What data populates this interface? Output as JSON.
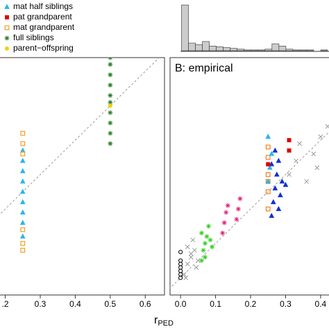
{
  "chart_data": [
    {
      "type": "scatter",
      "xlim": [
        0.185,
        0.655
      ],
      "ylim": [
        -0.05,
        0.64
      ],
      "xticks": [
        {
          "value": 0.2,
          "label": ".2"
        },
        0.3,
        0.4,
        0.5,
        0.6
      ],
      "diagonal": true,
      "series": [
        {
          "name": "mat half siblings",
          "color": "#29b6e8",
          "marker": "triangle",
          "x": [
            0.25,
            0.25,
            0.25,
            0.25,
            0.25,
            0.25,
            0.25,
            0.25,
            0.25
          ],
          "values": [
            0.12,
            0.16,
            0.19,
            0.22,
            0.25,
            0.28,
            0.31,
            0.34,
            0.37
          ]
        },
        {
          "name": "pat grandparent",
          "color": "#e00000",
          "marker": "square",
          "x": [],
          "values": []
        },
        {
          "name": "mat grandparent",
          "color": "#f0a020",
          "marker": "square-open",
          "x": [
            0.25,
            0.25,
            0.25,
            0.25,
            0.25,
            0.25
          ],
          "values": [
            0.08,
            0.1,
            0.14,
            0.36,
            0.39,
            0.42
          ]
        },
        {
          "name": "full siblings",
          "color": "#1e7a1e",
          "marker": "asterisk",
          "x": [
            0.5,
            0.5,
            0.5,
            0.5,
            0.5,
            0.5,
            0.5,
            0.5,
            0.5,
            0.5
          ],
          "values": [
            0.39,
            0.42,
            0.45,
            0.48,
            0.51,
            0.53,
            0.56,
            0.59,
            0.62,
            0.64
          ]
        },
        {
          "name": "parent−offspring",
          "color": "#f5d000",
          "marker": "dot",
          "x": [
            0.5
          ],
          "values": [
            0.5
          ]
        }
      ]
    },
    {
      "type": "scatter",
      "title": "B: empirical",
      "x_label": "r",
      "x_label_sub": "PED",
      "xlim": [
        -0.03,
        0.424
      ],
      "ylim": [
        -0.05,
        0.64
      ],
      "xticks": [
        {
          "value": 0,
          "label": "0.0"
        },
        0.1,
        0.2,
        0.3,
        0.4
      ],
      "diagonal": true,
      "series": [
        {
          "color": "#999999",
          "marker": "x",
          "x": [
            0.01,
            0.02,
            0.03,
            0.04,
            0.05,
            0.02,
            0.035,
            0.045,
            0.015,
            0.03
          ],
          "values": [
            0.01,
            0.04,
            0.06,
            0.08,
            0.05,
            0.09,
            0.11,
            0.03,
            0.0,
            0.07
          ]
        },
        {
          "color": "#000000",
          "marker": "circle",
          "x": [
            0,
            0,
            0,
            0,
            0,
            0,
            0
          ],
          "values": [
            0.0,
            0.01,
            0.02,
            0.03,
            0.04,
            0.05,
            0.075
          ]
        },
        {
          "color": "#33cc22",
          "marker": "asterisk",
          "x": [
            0.06,
            0.065,
            0.07,
            0.075,
            0.08,
            0.085,
            0.06,
            0.07,
            0.09
          ],
          "values": [
            0.05,
            0.08,
            0.1,
            0.12,
            0.15,
            0.11,
            0.13,
            0.06,
            0.09
          ]
        },
        {
          "color": "#e0207a",
          "marker": "asterisk",
          "x": [
            0.12,
            0.125,
            0.13,
            0.135,
            0.16,
            0.165,
            0.17
          ],
          "values": [
            0.13,
            0.16,
            0.19,
            0.21,
            0.17,
            0.2,
            0.23
          ]
        },
        {
          "color": "#f08020",
          "marker": "square-open",
          "x": [
            0.25,
            0.25,
            0.25,
            0.25,
            0.25,
            0.25
          ],
          "values": [
            0.2,
            0.25,
            0.3,
            0.35,
            0.28,
            0.38
          ]
        },
        {
          "color": "#1030d0",
          "marker": "triangle",
          "x": [
            0.26,
            0.265,
            0.27,
            0.275,
            0.28,
            0.285,
            0.29,
            0.27,
            0.28,
            0.26,
            0.3
          ],
          "values": [
            0.18,
            0.22,
            0.26,
            0.3,
            0.34,
            0.24,
            0.28,
            0.37,
            0.2,
            0.33,
            0.27
          ]
        },
        {
          "color": "#29b6e8",
          "marker": "triangle",
          "x": [
            0.25,
            0.255,
            0.25,
            0.26
          ],
          "values": [
            0.28,
            0.32,
            0.41,
            0.36
          ]
        },
        {
          "color": "#e00000",
          "marker": "square",
          "x": [
            0.25,
            0.31,
            0.31
          ],
          "values": [
            0.33,
            0.4,
            0.37
          ]
        },
        {
          "color": "#999999",
          "marker": "x",
          "x": [
            0.31,
            0.33,
            0.36,
            0.38,
            0.4,
            0.42,
            0.34,
            0.39
          ],
          "values": [
            0.3,
            0.34,
            0.28,
            0.36,
            0.41,
            0.44,
            0.39,
            0.32
          ]
        }
      ]
    },
    {
      "type": "histogram",
      "bins": [
        0,
        0.02,
        0.04,
        0.06,
        0.08,
        0.1,
        0.12,
        0.14,
        0.16,
        0.18,
        0.2,
        0.22,
        0.24,
        0.26,
        0.28,
        0.3,
        0.32,
        0.34,
        0.36,
        0.38,
        0.4,
        0.42
      ],
      "values": [
        60,
        10,
        8,
        12,
        6,
        5,
        4,
        3,
        2,
        1,
        1,
        1,
        2,
        9,
        6,
        2,
        1,
        1,
        1,
        0,
        1
      ],
      "xlim": [
        -0.003,
        0.424
      ],
      "ylim": [
        0,
        62
      ],
      "color": "#cccccc"
    }
  ]
}
